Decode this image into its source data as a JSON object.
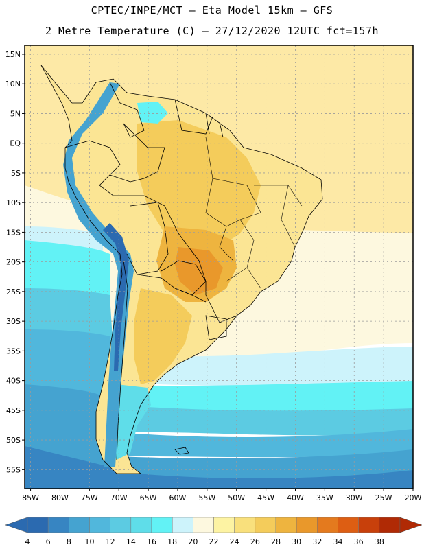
{
  "title": {
    "line1": "CPTEC/INPE/MCT –  Eta Model 15km – GFS",
    "line2": "2 Metre Temperature (C) – 27/12/2020 12UTC fct=157h"
  },
  "axes": {
    "lat_labels": [
      "15N",
      "10N",
      "5N",
      "EQ",
      "5S",
      "10S",
      "15S",
      "20S",
      "25S",
      "30S",
      "35S",
      "40S",
      "45S",
      "50S",
      "55S"
    ],
    "lon_labels": [
      "85W",
      "80W",
      "75W",
      "70W",
      "65W",
      "60W",
      "55W",
      "50W",
      "45W",
      "40W",
      "35W",
      "30W",
      "25W",
      "20W"
    ]
  },
  "colorbar": {
    "ticks": [
      "4",
      "6",
      "8",
      "10",
      "12",
      "14",
      "16",
      "18",
      "20",
      "22",
      "24",
      "26",
      "28",
      "30",
      "32",
      "34",
      "36",
      "38"
    ],
    "colors": [
      "#2b6ab0",
      "#3785c2",
      "#45a3d0",
      "#51b7dc",
      "#5ccbe2",
      "#5fdde9",
      "#62f2f5",
      "#cdf3fb",
      "#fdf8df",
      "#fdf3a3",
      "#f9e07c",
      "#f4cc5b",
      "#eeb43f",
      "#e9982b",
      "#e47a1e",
      "#dd5e13",
      "#c8400b",
      "#b02a05"
    ]
  },
  "map_colors": {
    "ocean_warm": "#fde9a6",
    "ocean_cream": "#fdf8df",
    "ocean_pale": "#cdf3fb",
    "ocean_light": "#62f2f5",
    "ocean_mid": "#5ccbe2",
    "ocean_blue": "#51b7dc",
    "ocean_deep": "#45a3d0",
    "ocean_dark": "#3785c2",
    "land_base": "#fbe594",
    "land_warm": "#f4cc5b",
    "land_hot": "#eeb43f",
    "land_core": "#e9982b",
    "andes_cold": "#45a3d0",
    "andes_peak": "#2b6ab0",
    "patagonia": "#5fdde9",
    "gridline": "#9b9b9b"
  }
}
